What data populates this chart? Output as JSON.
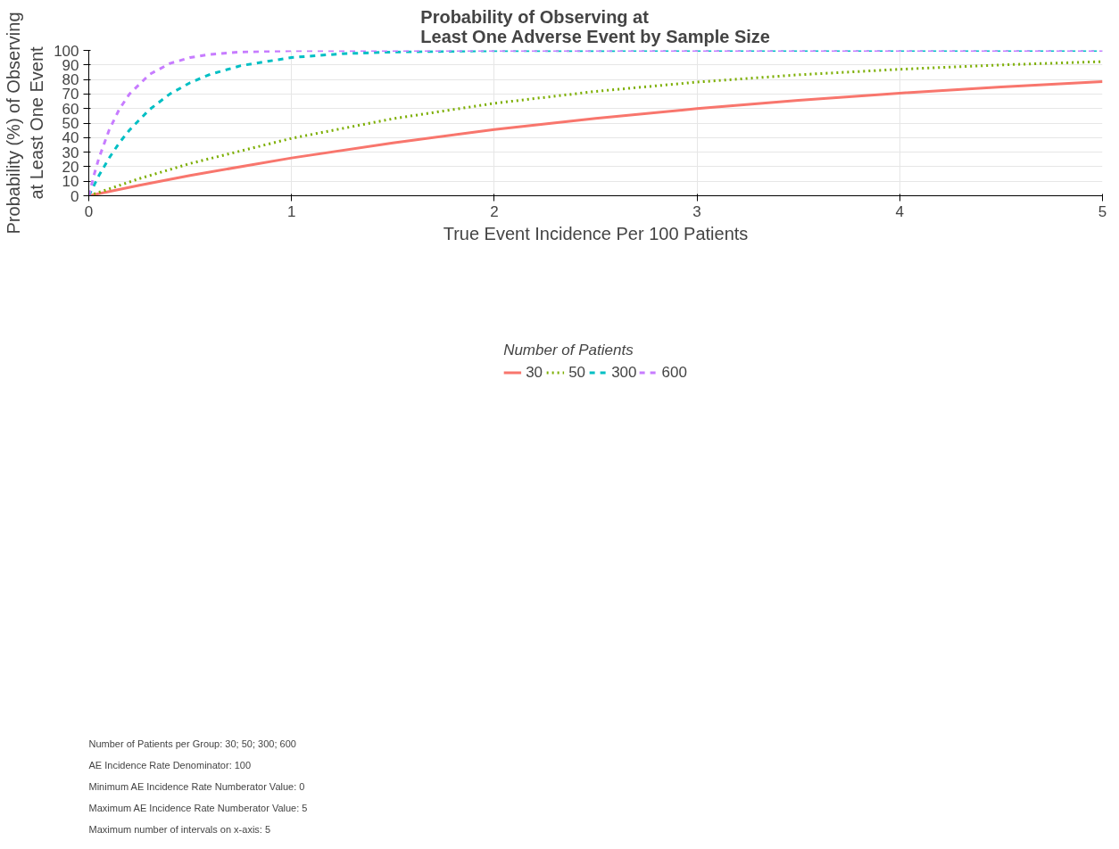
{
  "chart_data": {
    "type": "line",
    "title": "Probability of Observing at\nLeast One Adverse Event by Sample Size",
    "xlabel": "True Event Incidence Per 100 Patients",
    "ylabel": "Probability (%) of Observing\nat Least One Event",
    "legend_title": "Number of Patients",
    "legend": "bottom",
    "grid": true,
    "xlim": [
      0,
      5
    ],
    "ylim": [
      0,
      100
    ],
    "xticks": [
      0,
      1,
      2,
      3,
      4,
      5
    ],
    "yticks": [
      0,
      10,
      20,
      30,
      40,
      50,
      60,
      70,
      80,
      90,
      100
    ],
    "series": [
      {
        "name": "30",
        "color": "#f8766d",
        "line_style": "solid",
        "x": [
          0,
          0.25,
          0.5,
          1,
          1.5,
          2,
          2.5,
          3,
          3.5,
          4,
          4.5,
          5
        ],
        "values": [
          0,
          7.2,
          14.0,
          26.0,
          36.4,
          45.5,
          53.2,
          59.9,
          65.7,
          70.6,
          74.9,
          78.5
        ]
      },
      {
        "name": "50",
        "color": "#7cae00",
        "line_style": "dotted",
        "x": [
          0,
          0.25,
          0.5,
          1,
          1.5,
          2,
          2.5,
          3,
          3.5,
          4,
          4.5,
          5
        ],
        "values": [
          0,
          11.8,
          22.2,
          39.5,
          53.0,
          63.6,
          71.8,
          78.2,
          83.2,
          87.0,
          90.0,
          92.3
        ]
      },
      {
        "name": "300",
        "color": "#00bfc4",
        "line_style": "dashed",
        "x": [
          0,
          0.05,
          0.1,
          0.15,
          0.2,
          0.3,
          0.4,
          0.5,
          0.6,
          0.75,
          1,
          1.25,
          1.5,
          2,
          3,
          5
        ],
        "values": [
          0,
          13.9,
          25.9,
          36.3,
          45.1,
          59.4,
          70.0,
          77.8,
          83.6,
          89.5,
          95.1,
          97.7,
          98.9,
          99.8,
          100,
          100
        ]
      },
      {
        "name": "600",
        "color": "#c77cff",
        "line_style": "dashed",
        "x": [
          0,
          0.025,
          0.05,
          0.1,
          0.15,
          0.2,
          0.3,
          0.4,
          0.5,
          0.6,
          0.75,
          1,
          1.5,
          5
        ],
        "values": [
          0,
          13.9,
          25.9,
          45.1,
          59.4,
          69.9,
          83.5,
          91.0,
          95.1,
          97.3,
          98.9,
          99.8,
          100,
          100
        ]
      }
    ],
    "annotations": [
      "Number of Patients per Group: 30; 50; 300; 600",
      "AE Incidence Rate Denominator: 100",
      "Minimum AE Incidence Rate Numberator Value: 0",
      "Maximum AE Incidence Rate Numberator Value: 5",
      "Maximum number of intervals on x-axis: 5"
    ]
  }
}
